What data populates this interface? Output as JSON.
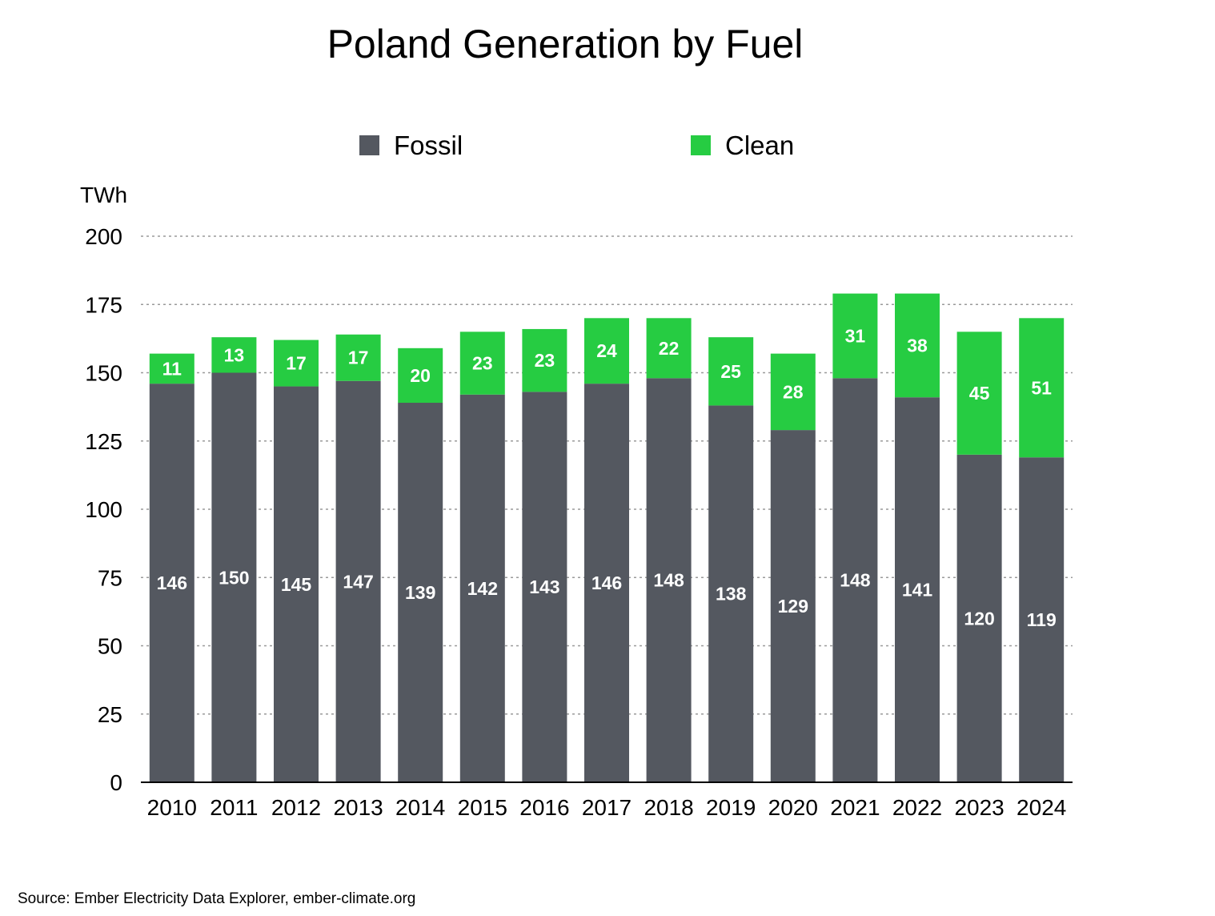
{
  "chart_data": {
    "type": "bar",
    "stacked": true,
    "title": "Poland Generation by Fuel",
    "ylabel": "TWh",
    "xlabel": "",
    "ylim": [
      0,
      200
    ],
    "yticks": [
      0,
      25,
      50,
      75,
      100,
      125,
      150,
      175,
      200
    ],
    "grid": true,
    "legend_position": "top-center",
    "categories": [
      "2010",
      "2011",
      "2012",
      "2013",
      "2014",
      "2015",
      "2016",
      "2017",
      "2018",
      "2019",
      "2020",
      "2021",
      "2022",
      "2023",
      "2024"
    ],
    "series": [
      {
        "name": "Fossil",
        "color": "#545860",
        "values": [
          146,
          150,
          145,
          147,
          139,
          142,
          143,
          146,
          148,
          138,
          129,
          148,
          141,
          120,
          119
        ]
      },
      {
        "name": "Clean",
        "color": "#26cc42",
        "values": [
          11,
          13,
          17,
          17,
          20,
          23,
          23,
          24,
          22,
          25,
          28,
          31,
          38,
          45,
          51
        ]
      }
    ],
    "source": "Source: Ember Electricity Data Explorer, ember-climate.org"
  }
}
